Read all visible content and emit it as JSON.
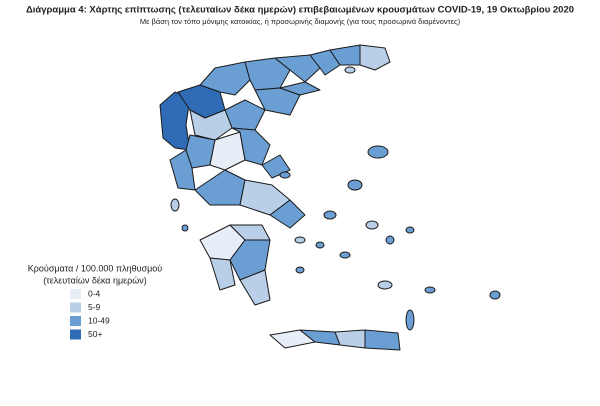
{
  "header": {
    "title": "Διάγραμμα 4: Χάρτης επίπτωσης (τελευταίων δέκα ημερών) επιβεβαιωμένων κρουσμάτων COVID-19, 19 Οκτωβρίου 2020",
    "subtitle": "Με βάση τον τόπο μόνιμης κατοικίας, ή προσωρινής διαμονής (για τους προσωρινά διαμένοντες)"
  },
  "legend": {
    "title": [
      "Κρούσματα / 100.000 πληθυσμού",
      "(τελευταίων δέκα ημερών)"
    ],
    "items": [
      {
        "label": "0-4",
        "color": "#e8eef8"
      },
      {
        "label": "5-9",
        "color": "#b9cfe8"
      },
      {
        "label": "10-49",
        "color": "#6b9fd4"
      },
      {
        "label": "50+",
        "color": "#2f6cb5"
      }
    ]
  }
}
